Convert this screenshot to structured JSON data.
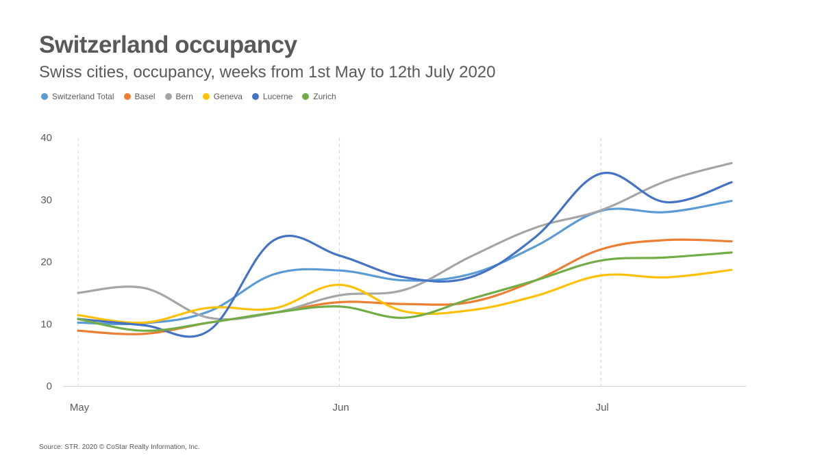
{
  "chart_data": {
    "type": "line",
    "title": "Switzerland occupancy",
    "subtitle": "Swiss cities, occupancy, weeks from 1st May to 12th July 2020",
    "source": "Source: STR. 2020 © CoStar Realty Information, Inc.",
    "xlabel": "",
    "ylabel": "",
    "ylim": [
      0,
      40
    ],
    "yticks": [
      "0",
      "10",
      "20",
      "30",
      "40"
    ],
    "x": [
      0,
      1,
      2,
      3,
      4,
      5,
      6,
      7,
      8,
      9,
      10
    ],
    "xticks": [
      {
        "label": "May",
        "x": 0
      },
      {
        "label": "Jun",
        "x": 4
      },
      {
        "label": "Jul",
        "x": 8
      }
    ],
    "legend_position": "top-left",
    "series": [
      {
        "name": "Switzerland Total",
        "color": "#5b9bd5",
        "values": [
          10.2,
          10.1,
          12.0,
          18.0,
          18.6,
          17.0,
          18.0,
          22.5,
          28.2,
          28.0,
          29.8
        ]
      },
      {
        "name": "Basel",
        "color": "#ed7d31",
        "values": [
          8.9,
          8.4,
          10.2,
          11.8,
          13.5,
          13.2,
          13.5,
          17.0,
          22.0,
          23.5,
          23.3
        ]
      },
      {
        "name": "Bern",
        "color": "#a5a5a5",
        "values": [
          15.0,
          15.8,
          11.0,
          11.8,
          14.6,
          15.5,
          20.8,
          25.5,
          28.3,
          33.0,
          35.9
        ]
      },
      {
        "name": "Geneva",
        "color": "#ffc000",
        "values": [
          11.4,
          10.2,
          12.6,
          12.5,
          16.3,
          12.0,
          12.2,
          14.5,
          17.8,
          17.5,
          18.7
        ]
      },
      {
        "name": "Lucerne",
        "color": "#4472c4",
        "values": [
          10.8,
          9.8,
          8.9,
          23.5,
          21.0,
          17.5,
          17.5,
          24.0,
          34.2,
          29.6,
          32.8
        ]
      },
      {
        "name": "Zurich",
        "color": "#70ad47",
        "values": [
          10.8,
          8.9,
          10.2,
          11.8,
          12.8,
          11.0,
          14.0,
          17.0,
          20.2,
          20.7,
          21.5
        ]
      }
    ]
  }
}
